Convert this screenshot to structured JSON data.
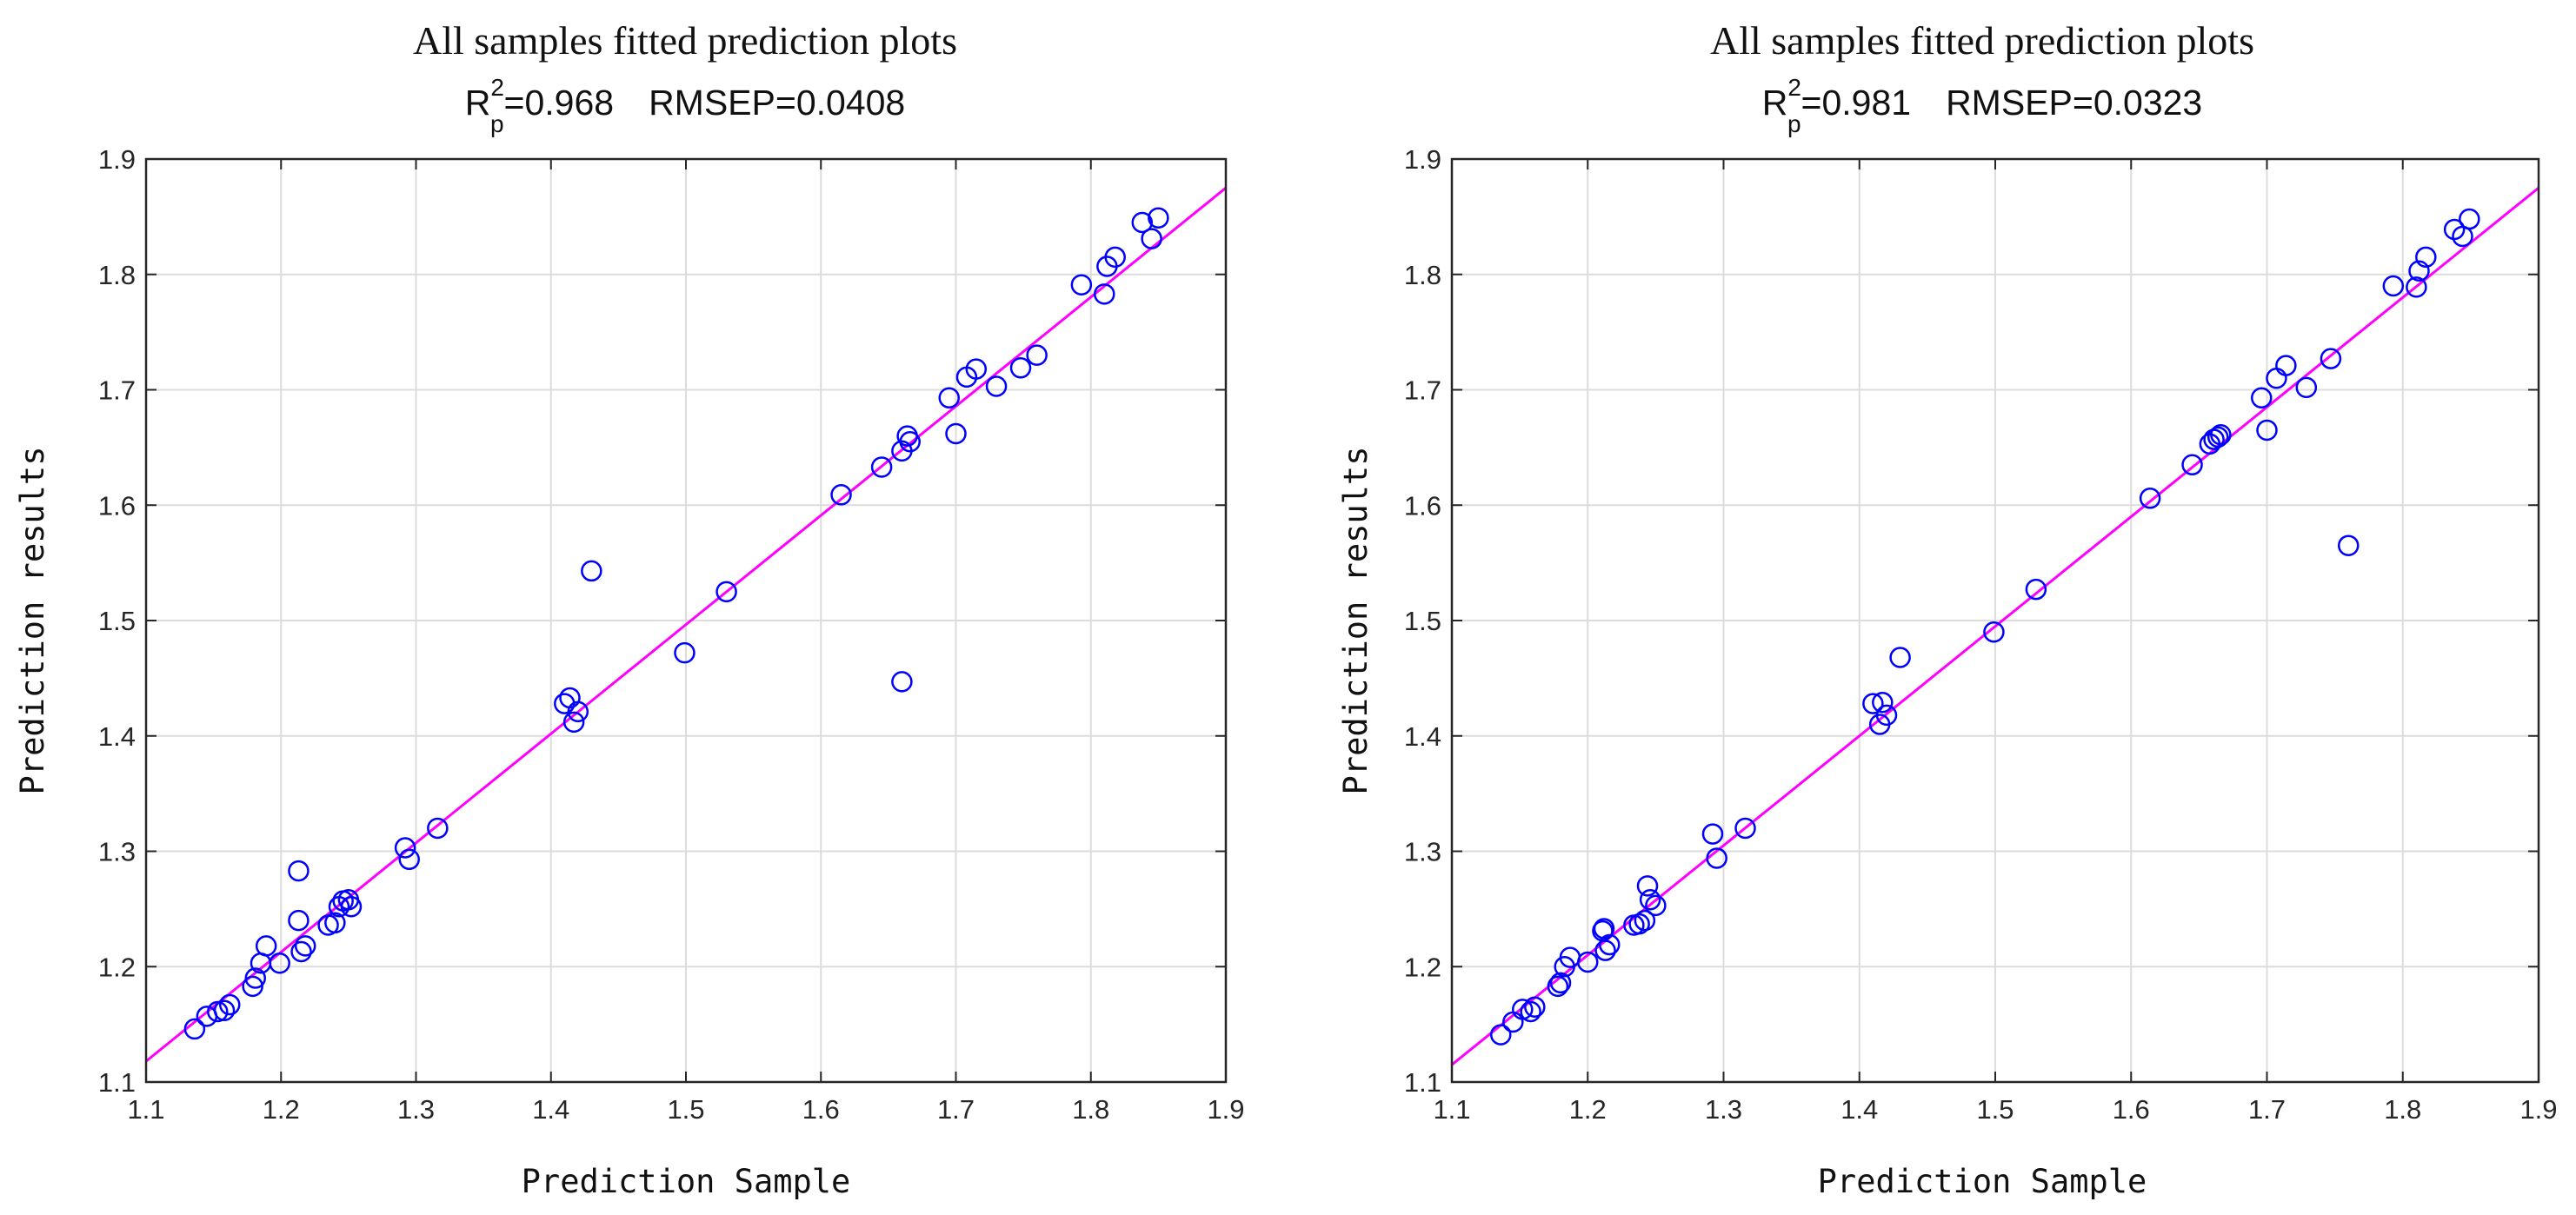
{
  "chart_data": [
    {
      "type": "scatter",
      "title": "All samples fitted prediction plots",
      "subtitle": {
        "r_symbol": "R",
        "r_superscript": "2",
        "r_subscript": "p",
        "r_value": "=0.968",
        "rmsep": "RMSEP=0.0408"
      },
      "xlabel": "Prediction Sample",
      "ylabel": "Prediction results",
      "xlim": [
        1.1,
        1.9
      ],
      "ylim": [
        1.1,
        1.9
      ],
      "xticks": [
        "1.1",
        "1.2",
        "1.3",
        "1.4",
        "1.5",
        "1.6",
        "1.7",
        "1.8",
        "1.9"
      ],
      "yticks": [
        "1.1",
        "1.2",
        "1.3",
        "1.4",
        "1.5",
        "1.6",
        "1.7",
        "1.8",
        "1.9"
      ],
      "grid": true,
      "marker_color": "#0000ff",
      "fit_line": {
        "x": [
          1.1,
          1.9
        ],
        "y": [
          1.118,
          1.875
        ],
        "color": "#ff00ff"
      },
      "points": [
        [
          1.136,
          1.146
        ],
        [
          1.145,
          1.157
        ],
        [
          1.153,
          1.161
        ],
        [
          1.158,
          1.162
        ],
        [
          1.162,
          1.167
        ],
        [
          1.179,
          1.183
        ],
        [
          1.181,
          1.19
        ],
        [
          1.185,
          1.203
        ],
        [
          1.189,
          1.218
        ],
        [
          1.199,
          1.203
        ],
        [
          1.213,
          1.283
        ],
        [
          1.213,
          1.24
        ],
        [
          1.215,
          1.213
        ],
        [
          1.218,
          1.218
        ],
        [
          1.235,
          1.236
        ],
        [
          1.24,
          1.238
        ],
        [
          1.243,
          1.252
        ],
        [
          1.246,
          1.257
        ],
        [
          1.25,
          1.258
        ],
        [
          1.252,
          1.252
        ],
        [
          1.292,
          1.303
        ],
        [
          1.295,
          1.293
        ],
        [
          1.316,
          1.32
        ],
        [
          1.41,
          1.428
        ],
        [
          1.414,
          1.433
        ],
        [
          1.417,
          1.412
        ],
        [
          1.42,
          1.421
        ],
        [
          1.43,
          1.543
        ],
        [
          1.499,
          1.472
        ],
        [
          1.53,
          1.525
        ],
        [
          1.615,
          1.609
        ],
        [
          1.645,
          1.633
        ],
        [
          1.66,
          1.447
        ],
        [
          1.66,
          1.647
        ],
        [
          1.664,
          1.66
        ],
        [
          1.666,
          1.655
        ],
        [
          1.695,
          1.693
        ],
        [
          1.7,
          1.662
        ],
        [
          1.708,
          1.711
        ],
        [
          1.715,
          1.718
        ],
        [
          1.73,
          1.703
        ],
        [
          1.748,
          1.719
        ],
        [
          1.76,
          1.73
        ],
        [
          1.793,
          1.791
        ],
        [
          1.81,
          1.783
        ],
        [
          1.812,
          1.807
        ],
        [
          1.818,
          1.815
        ],
        [
          1.838,
          1.845
        ],
        [
          1.845,
          1.831
        ],
        [
          1.85,
          1.849
        ]
      ]
    },
    {
      "type": "scatter",
      "title": "All samples fitted prediction plots",
      "subtitle": {
        "r_symbol": "R",
        "r_superscript": "2",
        "r_subscript": "p",
        "r_value": "=0.981",
        "rmsep": "RMSEP=0.0323"
      },
      "xlabel": "Prediction Sample",
      "ylabel": "Prediction results",
      "xlim": [
        1.1,
        1.9
      ],
      "ylim": [
        1.1,
        1.9
      ],
      "xticks": [
        "1.1",
        "1.2",
        "1.3",
        "1.4",
        "1.5",
        "1.6",
        "1.7",
        "1.8",
        "1.9"
      ],
      "yticks": [
        "1.1",
        "1.2",
        "1.3",
        "1.4",
        "1.5",
        "1.6",
        "1.7",
        "1.8",
        "1.9"
      ],
      "grid": true,
      "marker_color": "#0000ff",
      "fit_line": {
        "x": [
          1.1,
          1.9
        ],
        "y": [
          1.115,
          1.875
        ],
        "color": "#ff00ff"
      },
      "points": [
        [
          1.136,
          1.141
        ],
        [
          1.145,
          1.152
        ],
        [
          1.152,
          1.163
        ],
        [
          1.158,
          1.161
        ],
        [
          1.161,
          1.165
        ],
        [
          1.178,
          1.183
        ],
        [
          1.18,
          1.186
        ],
        [
          1.183,
          1.2
        ],
        [
          1.187,
          1.208
        ],
        [
          1.2,
          1.204
        ],
        [
          1.211,
          1.231
        ],
        [
          1.212,
          1.233
        ],
        [
          1.213,
          1.214
        ],
        [
          1.216,
          1.219
        ],
        [
          1.234,
          1.236
        ],
        [
          1.238,
          1.237
        ],
        [
          1.242,
          1.24
        ],
        [
          1.244,
          1.27
        ],
        [
          1.246,
          1.258
        ],
        [
          1.25,
          1.253
        ],
        [
          1.292,
          1.315
        ],
        [
          1.295,
          1.294
        ],
        [
          1.316,
          1.32
        ],
        [
          1.41,
          1.428
        ],
        [
          1.415,
          1.41
        ],
        [
          1.417,
          1.429
        ],
        [
          1.42,
          1.418
        ],
        [
          1.43,
          1.468
        ],
        [
          1.499,
          1.49
        ],
        [
          1.53,
          1.527
        ],
        [
          1.614,
          1.606
        ],
        [
          1.645,
          1.635
        ],
        [
          1.658,
          1.653
        ],
        [
          1.661,
          1.657
        ],
        [
          1.664,
          1.659
        ],
        [
          1.666,
          1.661
        ],
        [
          1.696,
          1.693
        ],
        [
          1.7,
          1.665
        ],
        [
          1.707,
          1.71
        ],
        [
          1.714,
          1.721
        ],
        [
          1.729,
          1.702
        ],
        [
          1.747,
          1.727
        ],
        [
          1.76,
          1.565
        ],
        [
          1.793,
          1.79
        ],
        [
          1.81,
          1.789
        ],
        [
          1.812,
          1.803
        ],
        [
          1.817,
          1.815
        ],
        [
          1.838,
          1.839
        ],
        [
          1.844,
          1.833
        ],
        [
          1.849,
          1.848
        ]
      ]
    }
  ]
}
